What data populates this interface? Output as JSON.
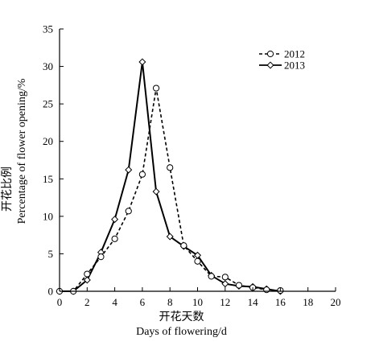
{
  "chart_data": {
    "type": "line",
    "title": "",
    "xlabel_cn": "开花天数",
    "xlabel": "Days of flowering/d",
    "ylabel_cn": "开花比例",
    "ylabel": "Percentage of flower opening/%",
    "xlim": [
      0,
      20
    ],
    "ylim": [
      0,
      35
    ],
    "x_ticks": [
      0,
      2,
      4,
      6,
      8,
      10,
      12,
      14,
      16,
      18,
      20
    ],
    "y_ticks": [
      0,
      5,
      10,
      15,
      20,
      25,
      30,
      35
    ],
    "grid": false,
    "legend_position": "top-right",
    "series": [
      {
        "name": "2012",
        "style": "dashed",
        "marker": "circle",
        "x": [
          0,
          1,
          2,
          3,
          4,
          5,
          6,
          7,
          8,
          9,
          10,
          11,
          12,
          13,
          14,
          15,
          16
        ],
        "y": [
          0,
          0,
          2.3,
          4.6,
          7.0,
          10.7,
          15.6,
          27.1,
          16.5,
          6.1,
          4.0,
          2.0,
          1.9,
          0.8,
          0.5,
          0.2,
          0.1
        ]
      },
      {
        "name": "2013",
        "style": "solid",
        "marker": "diamond",
        "x": [
          0,
          1,
          2,
          3,
          4,
          5,
          6,
          7,
          8,
          9,
          10,
          11,
          12,
          13,
          14,
          15,
          16
        ],
        "y": [
          0,
          0,
          1.5,
          5.2,
          9.6,
          16.2,
          30.6,
          13.3,
          7.3,
          6.0,
          4.8,
          2.1,
          1.0,
          0.7,
          0.6,
          0.3,
          0
        ]
      }
    ]
  }
}
